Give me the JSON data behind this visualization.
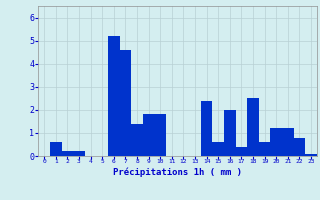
{
  "values": [
    0,
    0.6,
    0.2,
    0.2,
    0,
    0,
    5.2,
    4.6,
    1.4,
    1.8,
    1.8,
    0,
    0,
    0,
    2.4,
    0.6,
    2.0,
    0.4,
    2.5,
    0.6,
    1.2,
    1.2,
    0.8,
    0.1
  ],
  "bar_color": "#0033cc",
  "background_color": "#d4eef0",
  "grid_color": "#b8d0d4",
  "xlabel": "Précipitations 1h ( mm )",
  "xlabel_color": "#0000cc",
  "tick_color": "#0000cc",
  "ylim": [
    0,
    6.5
  ],
  "yticks": [
    0,
    1,
    2,
    3,
    4,
    5,
    6
  ],
  "figsize": [
    3.2,
    2.0
  ],
  "dpi": 100,
  "bar_width": 1.0
}
